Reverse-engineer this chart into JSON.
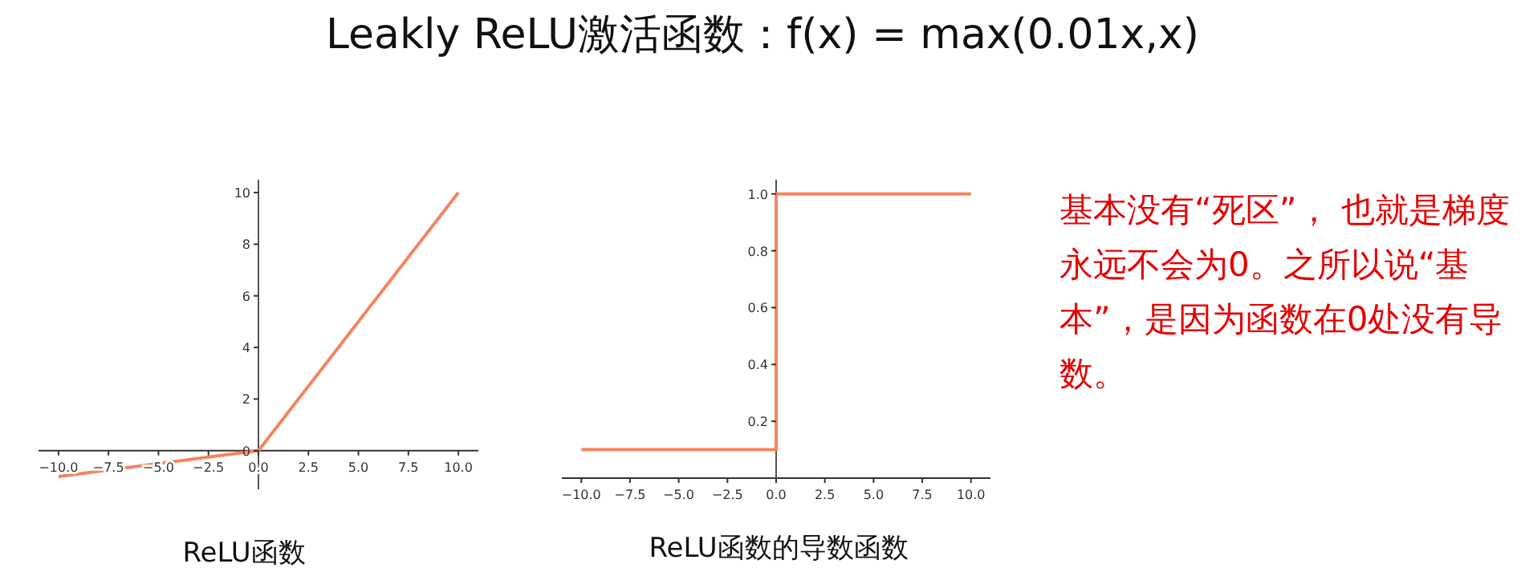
{
  "chart_data": [
    {
      "type": "other",
      "title": "Leakly ReLU激活函数：f(x) = max(0.01x,x)",
      "annotations": [
        "基本没有“死区”， 也就是梯度永远不会为0。之所以说“基本”，是因为函数在0处没有导数。"
      ]
    },
    {
      "type": "line",
      "xlabel": "ReLU函数",
      "x": [
        -10,
        0,
        10
      ],
      "series": [
        {
          "color": "#f4845f",
          "values": [
            -1,
            0,
            10
          ]
        }
      ],
      "xlim": [
        -11,
        11
      ],
      "ylim": [
        -1.5,
        10.5
      ],
      "xticks": [
        {
          "value": -10,
          "label": "−10.0"
        },
        {
          "value": -7.5,
          "label": "−7.5"
        },
        {
          "value": -5,
          "label": "−5.0"
        },
        {
          "value": -2.5,
          "label": "−2.5"
        },
        {
          "value": 0,
          "label": "0.0"
        },
        {
          "value": 2.5,
          "label": "2.5"
        },
        {
          "value": 5,
          "label": "5.0"
        },
        {
          "value": 7.5,
          "label": "7.5"
        },
        {
          "value": 10,
          "label": "10.0"
        }
      ],
      "yticks": [
        0,
        2,
        4,
        6,
        8,
        10
      ]
    },
    {
      "type": "line",
      "xlabel": "ReLU函数的导数函数",
      "x": [
        -10,
        0,
        0,
        10
      ],
      "series": [
        {
          "color": "#f4845f",
          "values": [
            0.1,
            0.1,
            1,
            1
          ]
        }
      ],
      "xlim": [
        -11,
        11
      ],
      "ylim": [
        0,
        1.05
      ],
      "xticks": [
        {
          "value": -10,
          "label": "−10.0"
        },
        {
          "value": -7.5,
          "label": "−7.5"
        },
        {
          "value": -5,
          "label": "−5.0"
        },
        {
          "value": -2.5,
          "label": "−2.5"
        },
        {
          "value": 0,
          "label": "0.0"
        },
        {
          "value": 2.5,
          "label": "2.5"
        },
        {
          "value": 5,
          "label": "5.0"
        },
        {
          "value": 7.5,
          "label": "7.5"
        },
        {
          "value": 10,
          "label": "10.0"
        }
      ],
      "yticks": [
        0.2,
        0.4,
        0.6,
        {
          "value": 1,
          "label": "1.0"
        },
        0.8
      ]
    }
  ]
}
